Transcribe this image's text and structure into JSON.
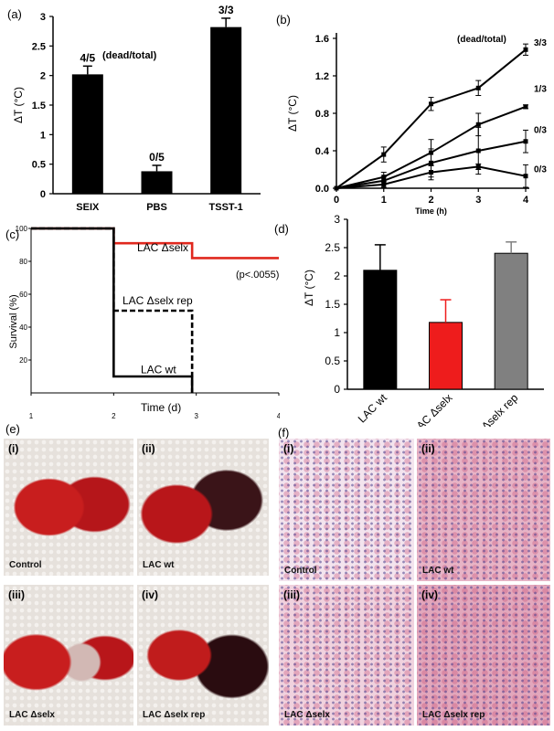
{
  "panels": {
    "a": {
      "label": "(a)",
      "chart_data": {
        "type": "bar",
        "categories": [
          "SEIX",
          "PBS",
          "TSST-1"
        ],
        "values": [
          2.02,
          0.38,
          2.82
        ],
        "errors": [
          0.14,
          0.1,
          0.15
        ],
        "bar_labels": [
          "4/5",
          "0/5",
          "3/3"
        ],
        "annotation": "(dead/total)",
        "ylabel": "ΔT (°C)",
        "ylim": [
          0,
          3
        ],
        "yticks": [
          "0",
          "0.5",
          "1",
          "1.5",
          "2",
          "2.5",
          "3"
        ],
        "color": "#000000"
      }
    },
    "b": {
      "label": "(b)",
      "chart_data": {
        "type": "line",
        "x": [
          0,
          1,
          2,
          3,
          4
        ],
        "series": [
          {
            "values": [
              0,
              0.36,
              0.9,
              1.07,
              1.48
            ],
            "errors": [
              0,
              0.08,
              0.07,
              0.08,
              0.06
            ],
            "end_label": "3/3"
          },
          {
            "values": [
              0,
              0.12,
              0.38,
              0.68,
              0.87
            ],
            "errors": [
              0,
              0.05,
              0.14,
              0.12,
              0.02
            ],
            "end_label": "1/3"
          },
          {
            "values": [
              0,
              0.08,
              0.27,
              0.4,
              0.5
            ],
            "errors": [
              0,
              0.04,
              0.15,
              0.25,
              0.12
            ],
            "end_label": "0/3"
          },
          {
            "values": [
              0,
              0.04,
              0.17,
              0.23,
              0.13
            ],
            "errors": [
              0,
              0.03,
              0.08,
              0.03,
              0.12
            ],
            "end_label": "0/3"
          }
        ],
        "annotation": "(dead/total)",
        "xlabel": "Time (h)",
        "ylabel": "ΔT (°C)",
        "ylim": [
          0,
          1.6
        ],
        "xlim": [
          0,
          4
        ],
        "yticks": [
          "0.0",
          "0.4",
          "0.8",
          "1.2",
          "1.6"
        ],
        "xticks": [
          "0",
          "1",
          "2",
          "3",
          "4"
        ]
      }
    },
    "c": {
      "label": "(c)",
      "chart_data": {
        "type": "line",
        "series": [
          {
            "points": [
              [
                1,
                100
              ],
              [
                2,
                100
              ],
              [
                2,
                91
              ],
              [
                2.95,
                91
              ],
              [
                2.95,
                82
              ],
              [
                4,
                82
              ]
            ],
            "label": "LAC Δselx",
            "color": "#e0281e",
            "dash": false
          },
          {
            "points": [
              [
                1,
                100
              ],
              [
                2,
                100
              ],
              [
                2,
                50
              ],
              [
                2.95,
                50
              ],
              [
                2.95,
                0
              ]
            ],
            "label": "LAC Δselx rep",
            "color": "#000000",
            "dash": true
          },
          {
            "points": [
              [
                1,
                100
              ],
              [
                2,
                100
              ],
              [
                2,
                10
              ],
              [
                2.95,
                10
              ],
              [
                2.95,
                0
              ]
            ],
            "label": "LAC wt",
            "color": "#000000",
            "dash": false
          }
        ],
        "annotation": "(p<.0055)",
        "xlabel": "Time (d)",
        "ylabel": "Survival (%)",
        "xlim": [
          1,
          4
        ],
        "ylim": [
          0,
          100
        ],
        "yticks": [
          "20",
          "40",
          "60",
          "80",
          "100"
        ],
        "xticks": [
          "1",
          "2",
          "3",
          "4"
        ]
      }
    },
    "d": {
      "label": "(d)",
      "chart_data": {
        "type": "bar",
        "categories": [
          "LAC wt",
          "LAC Δselx",
          "LAC Δselx rep"
        ],
        "values": [
          2.1,
          1.18,
          2.4
        ],
        "errors": [
          0.45,
          0.4,
          0.2
        ],
        "colors": [
          "#000000",
          "#ee1c1c",
          "#808080"
        ],
        "ylabel": "ΔT (°C)",
        "ylim": [
          0,
          3
        ],
        "yticks": [
          "0",
          "0.5",
          "1",
          "1.5",
          "2",
          "2.5",
          "3"
        ]
      }
    },
    "e": {
      "label": "(e)",
      "images": [
        {
          "roman": "(i)",
          "caption": "Control"
        },
        {
          "roman": "(ii)",
          "caption": "LAC wt"
        },
        {
          "roman": "(iii)",
          "caption": "LAC Δselx"
        },
        {
          "roman": "(iv)",
          "caption": "LAC Δselx rep"
        }
      ]
    },
    "f": {
      "label": "(f)",
      "images": [
        {
          "roman": "(i)",
          "caption": "Control"
        },
        {
          "roman": "(ii)",
          "caption": "LAC wt"
        },
        {
          "roman": "(iii)",
          "caption": "LAC Δselx"
        },
        {
          "roman": "(iv)",
          "caption": "LAC Δselx rep"
        }
      ]
    }
  }
}
